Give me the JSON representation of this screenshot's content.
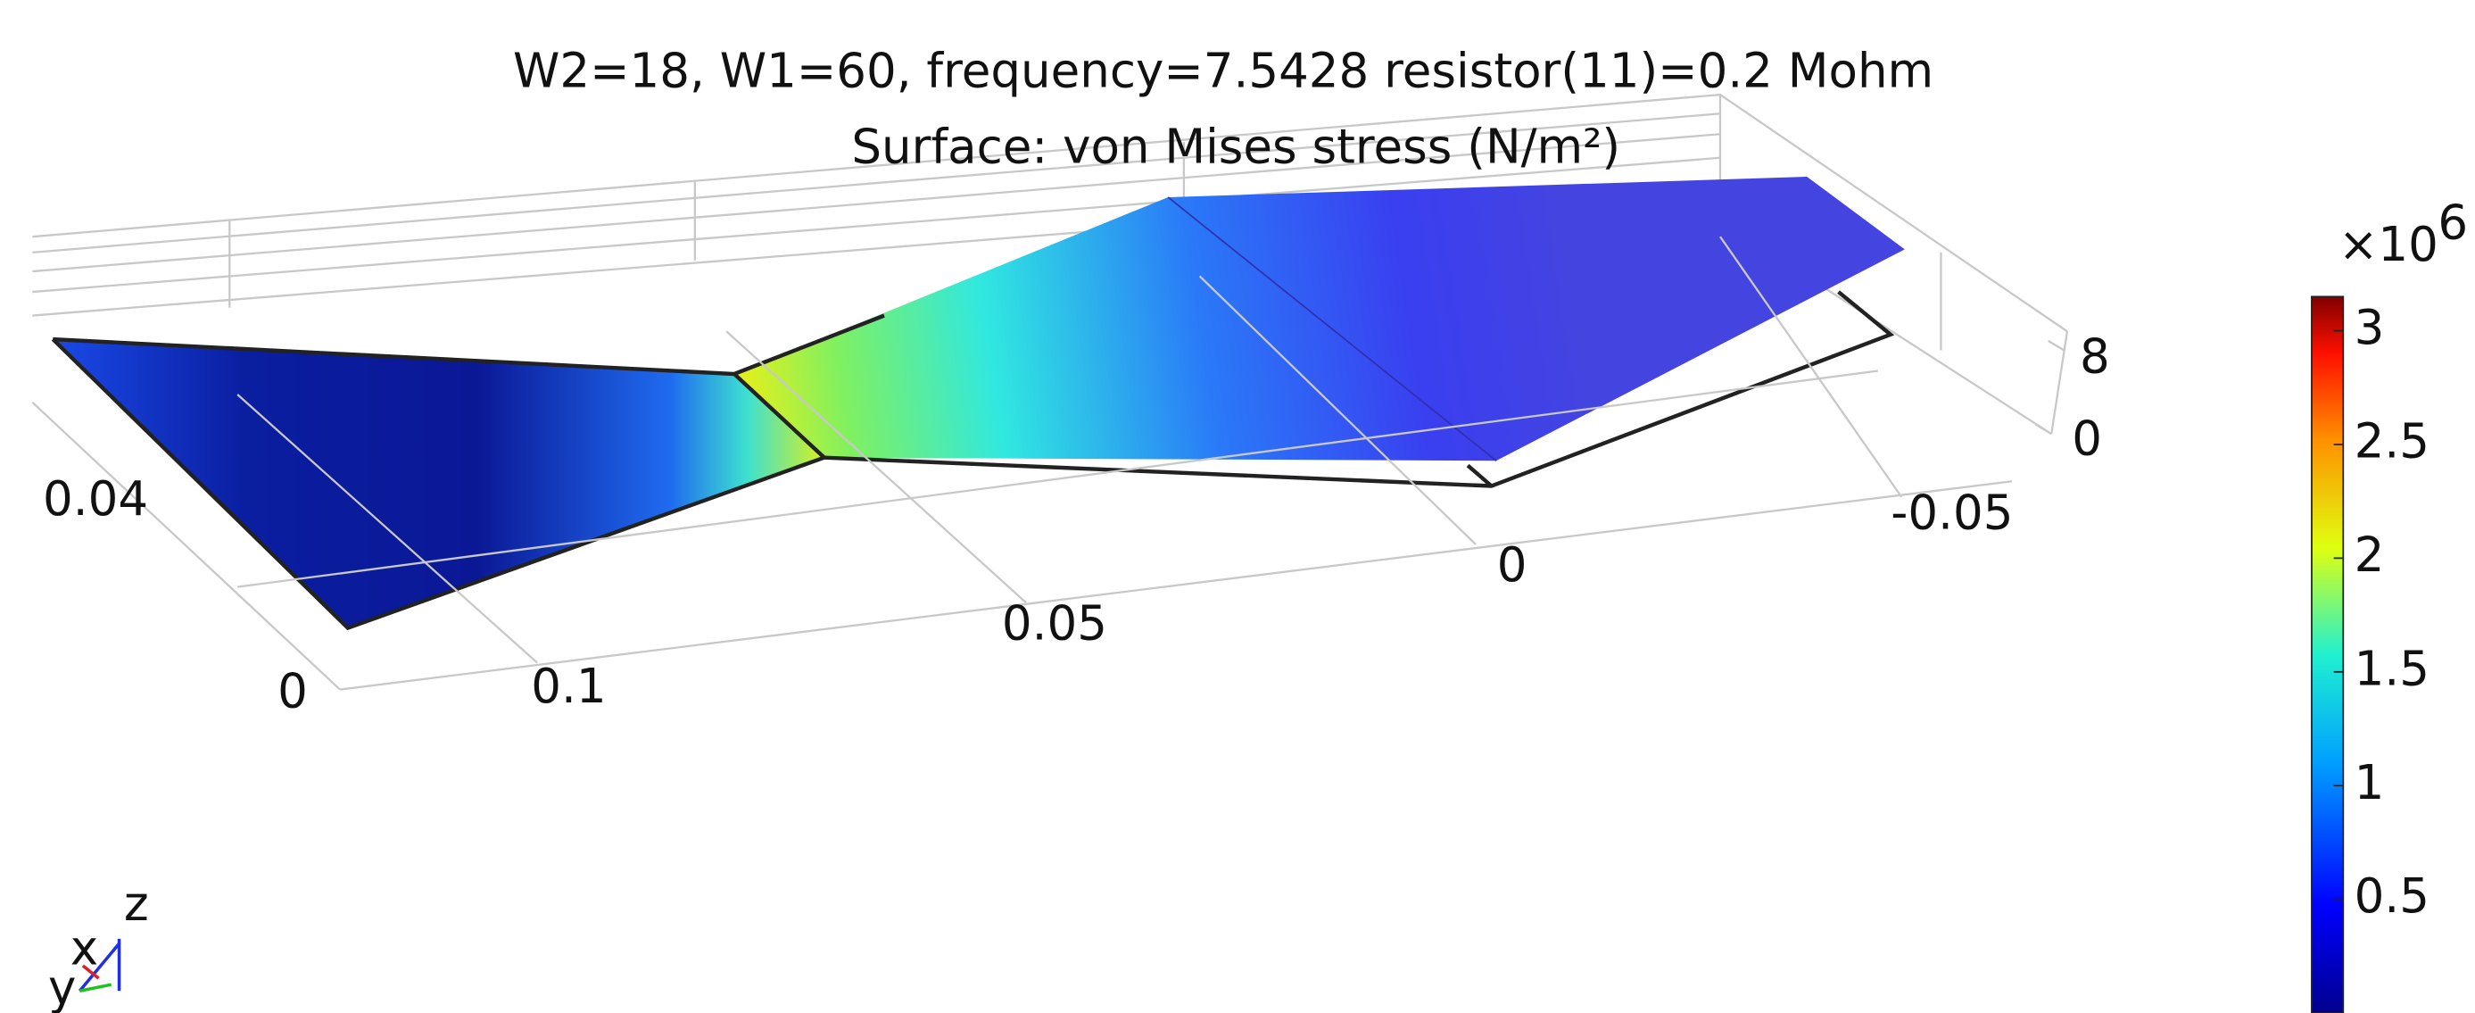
{
  "chart_data": {
    "type": "surface",
    "title": "W2=18, W1=60, frequency=7.5428 resistor(11)=0.2 Mohm",
    "subtitle": "Surface: von Mises stress (N/m²)",
    "xticks": [
      0.1,
      0.05,
      0,
      -0.05
    ],
    "yticks": [
      0,
      0.04
    ],
    "zticks": [
      0,
      8
    ],
    "colorbar": {
      "multiplier": "×10",
      "exponent": "6",
      "clim": [
        0,
        3.15
      ],
      "ticks": [
        0.5,
        1,
        1.5,
        2,
        2.5,
        3
      ]
    },
    "triad": {
      "x": "x",
      "y": "y",
      "z": "z"
    }
  }
}
